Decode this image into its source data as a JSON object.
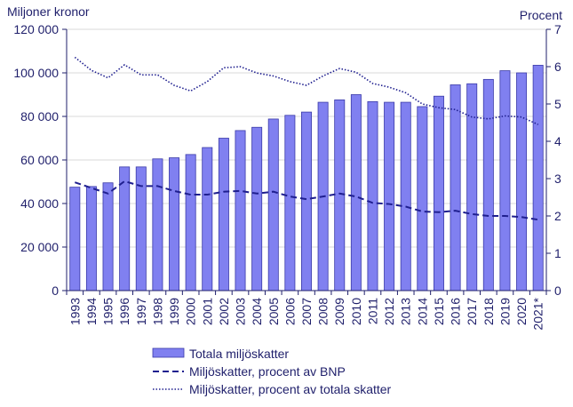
{
  "chart_data": {
    "type": "bar",
    "left_axis_label": "Miljoner kronor",
    "right_axis_label": "Procent",
    "categories": [
      "1993",
      "1994",
      "1995",
      "1996",
      "1997",
      "1998",
      "1999",
      "2000",
      "2001",
      "2002",
      "2003",
      "2004",
      "2005",
      "2006",
      "2007",
      "2008",
      "2009",
      "2010",
      "2011",
      "2012",
      "2013",
      "2014",
      "2015",
      "2016",
      "2017",
      "2018",
      "2019",
      "2020",
      "2021*"
    ],
    "left_ylim": [
      0,
      120000
    ],
    "left_ticks": [
      0,
      20000,
      40000,
      60000,
      80000,
      100000,
      120000
    ],
    "left_tick_labels": [
      "0",
      "20 000",
      "40 000",
      "60 000",
      "80 000",
      "100 000",
      "120 000"
    ],
    "right_ylim": [
      0,
      7
    ],
    "right_ticks": [
      0,
      1,
      2,
      3,
      4,
      5,
      6,
      7
    ],
    "right_tick_labels": [
      "0",
      "1",
      "2",
      "3",
      "4",
      "5",
      "6",
      "7"
    ],
    "grid": true,
    "legend_position": "bottom",
    "series": [
      {
        "name": "Totala miljöskatter",
        "type": "bar",
        "axis": "left",
        "color": "#8080f0",
        "values": [
          47500,
          47800,
          49500,
          56800,
          56800,
          60500,
          61000,
          62500,
          65700,
          70000,
          73500,
          75000,
          78800,
          80500,
          82000,
          86500,
          87600,
          90000,
          86800,
          86500,
          86500,
          84500,
          89300,
          94500,
          95000,
          97000,
          101000,
          100000,
          103500
        ]
      },
      {
        "name": "Miljöskatter, procent av BNP",
        "type": "line",
        "style": "dashed",
        "axis": "right",
        "color": "#1f1f8f",
        "values": [
          2.9,
          2.75,
          2.6,
          2.93,
          2.8,
          2.8,
          2.67,
          2.57,
          2.57,
          2.65,
          2.67,
          2.6,
          2.65,
          2.52,
          2.45,
          2.52,
          2.6,
          2.52,
          2.35,
          2.32,
          2.25,
          2.12,
          2.1,
          2.14,
          2.05,
          2.0,
          2.0,
          1.97,
          1.9
        ]
      },
      {
        "name": "Miljöskatter, procent av totala skatter",
        "type": "line",
        "style": "dotted",
        "axis": "right",
        "color": "#1f1f8f",
        "values": [
          6.25,
          5.9,
          5.7,
          6.05,
          5.78,
          5.78,
          5.5,
          5.35,
          5.6,
          5.97,
          6.0,
          5.83,
          5.75,
          5.6,
          5.5,
          5.75,
          5.95,
          5.85,
          5.55,
          5.45,
          5.3,
          5.0,
          4.9,
          4.85,
          4.65,
          4.6,
          4.68,
          4.65,
          4.45
        ]
      }
    ]
  }
}
